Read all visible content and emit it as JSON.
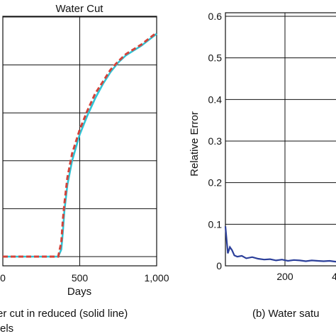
{
  "chart_data": [
    {
      "type": "line",
      "title": "Water Cut",
      "xlabel": "Days",
      "ylabel": "",
      "xlim": [
        0,
        1000
      ],
      "ylim": [
        0,
        1
      ],
      "x_ticks": [
        "0",
        "500",
        "1,000"
      ],
      "grid": true,
      "series": [
        {
          "style": "solid",
          "color": "#2ec4d6",
          "x": [
            0,
            100,
            200,
            300,
            360,
            380,
            390,
            400,
            420,
            450,
            500,
            550,
            600,
            650,
            700,
            750,
            800,
            850,
            900,
            950,
            1000
          ],
          "values": [
            0.0,
            0.0,
            0.0,
            0.0,
            0.0,
            0.03,
            0.1,
            0.19,
            0.3,
            0.4,
            0.51,
            0.59,
            0.66,
            0.72,
            0.77,
            0.81,
            0.84,
            0.86,
            0.88,
            0.905,
            0.93
          ]
        },
        {
          "style": "dashed",
          "color": "#d2433a",
          "x": [
            0,
            100,
            200,
            300,
            360,
            380,
            390,
            400,
            420,
            450,
            500,
            550,
            600,
            650,
            700,
            750,
            800,
            850,
            900,
            950,
            1000
          ],
          "values": [
            0.0,
            0.0,
            0.0,
            0.0,
            0.0,
            0.06,
            0.15,
            0.22,
            0.33,
            0.43,
            0.53,
            0.61,
            0.68,
            0.73,
            0.78,
            0.815,
            0.845,
            0.865,
            0.885,
            0.91,
            0.935
          ]
        }
      ]
    },
    {
      "type": "line",
      "title": "",
      "xlabel": "",
      "ylabel": "Relative Error",
      "xlim": [
        0,
        700
      ],
      "ylim": [
        0,
        0.6
      ],
      "x_ticks": [
        "200",
        "4"
      ],
      "y_ticks": [
        "0",
        "0.1",
        "0.2",
        "0.3",
        "0.4",
        "0.5",
        "0.6"
      ],
      "grid": true,
      "series": [
        {
          "color": "#2b3f9a",
          "x": [
            0,
            8,
            15,
            22,
            30,
            40,
            55,
            70,
            90,
            110,
            130,
            150,
            170,
            190,
            210,
            230,
            250,
            270,
            290,
            310,
            330,
            350,
            370,
            390,
            410,
            430,
            450,
            470
          ],
          "values": [
            0.095,
            0.03,
            0.045,
            0.038,
            0.025,
            0.022,
            0.024,
            0.018,
            0.021,
            0.017,
            0.015,
            0.016,
            0.013,
            0.015,
            0.012,
            0.014,
            0.013,
            0.011,
            0.013,
            0.012,
            0.011,
            0.012,
            0.01,
            0.011,
            0.012,
            0.01,
            0.011,
            0.01
          ]
        }
      ]
    }
  ],
  "captions": {
    "left": "er cut in reduced (solid line)",
    "left_line2": "els",
    "right": "(b) Water satu"
  }
}
